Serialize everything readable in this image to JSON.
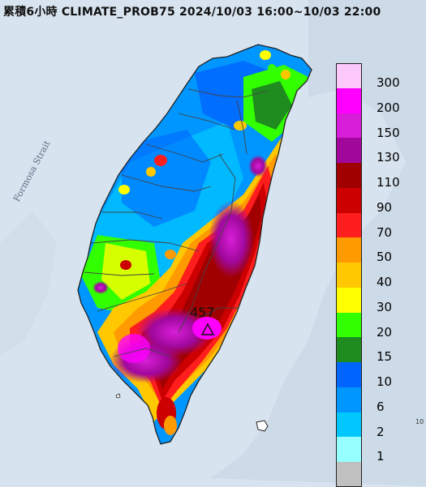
{
  "title": "累積6小時 CLIMATE_PROB75 2024/10/03 16:00~10/03 22:00",
  "water_label": "Formosa Strait",
  "peak_value": "457",
  "edge_mark": "10",
  "legend": {
    "labels": [
      "300",
      "200",
      "150",
      "130",
      "110",
      "90",
      "70",
      "50",
      "40",
      "30",
      "20",
      "15",
      "10",
      "6",
      "2",
      "1"
    ],
    "colors": [
      "#fcc8fc",
      "#ff00ff",
      "#d81ed8",
      "#a0089c",
      "#a00000",
      "#cc0000",
      "#ff1e1e",
      "#ff9a00",
      "#ffc800",
      "#ffff00",
      "#32ff00",
      "#1e8c1e",
      "#0064ff",
      "#0096ff",
      "#00c8ff",
      "#96ffff",
      "#c0c0c0"
    ]
  },
  "colors": {
    "sea": "#d7e3ee",
    "outline": "#222222",
    "county_line": "#444444"
  }
}
